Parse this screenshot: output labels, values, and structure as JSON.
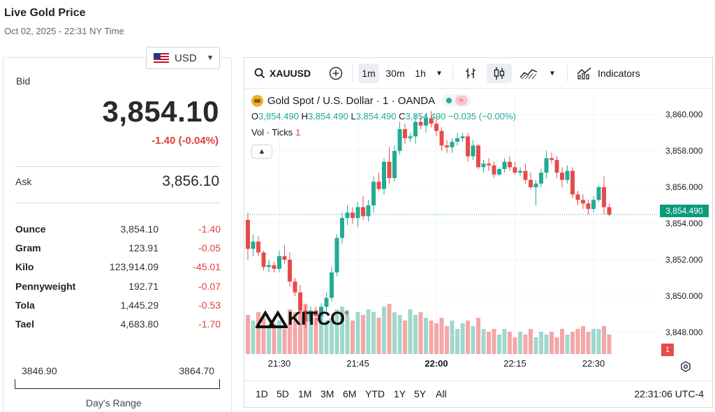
{
  "header": {
    "title": "Live Gold Price",
    "subtitle": "Oct 02, 2025 - 22:31 NY Time"
  },
  "currency": {
    "selected": "USD",
    "flag_icon": "us-flag-icon"
  },
  "bid": {
    "label": "Bid",
    "value": "3,854.10",
    "change": "-1.40 (-0.04%)"
  },
  "ask": {
    "label": "Ask",
    "value": "3,856.10"
  },
  "units": [
    {
      "name": "Ounce",
      "price": "3,854.10",
      "change": "-1.40"
    },
    {
      "name": "Gram",
      "price": "123.91",
      "change": "-0.05"
    },
    {
      "name": "Kilo",
      "price": "123,914.09",
      "change": "-45.01"
    },
    {
      "name": "Pennyweight",
      "price": "192.71",
      "change": "-0.07"
    },
    {
      "name": "Tola",
      "price": "1,445.29",
      "change": "-0.53"
    },
    {
      "name": "Tael",
      "price": "4,683.80",
      "change": "-1.70"
    }
  ],
  "days_range": {
    "low": "3846.90",
    "high": "3864.70",
    "caption": "Day's Range"
  },
  "toolbar": {
    "symbol": "XAUUSD",
    "intervals": [
      "1m",
      "30m",
      "1h"
    ],
    "active_interval": "1m",
    "indicators_label": "Indicators"
  },
  "legend": {
    "title": "Gold Spot / U.S. Dollar · 1 · OANDA",
    "o_label": "O",
    "o_value": "3,854.490",
    "h_label": "H",
    "h_value": "3,854.490",
    "l_label": "L",
    "l_value": "3,854.490",
    "c_label": "C",
    "c_value": "3,854.490",
    "change": "−0.035 (−0.00%)",
    "vol_label": "Vol · Ticks",
    "vol_value": "1",
    "live_symbol": "≈"
  },
  "watermark": {
    "text": "KITCO",
    "reg": "®"
  },
  "last_price_tag": "3,854.490",
  "volume_badge": "1",
  "range_buttons": [
    "1D",
    "5D",
    "1M",
    "3M",
    "6M",
    "YTD",
    "1Y",
    "5Y",
    "All"
  ],
  "clock": "22:31:06 UTC-4",
  "colors": {
    "up": "#22ab94",
    "down": "#e74b4b",
    "up_vol": "#9fd8cc",
    "down_vol": "#f4a7a7",
    "accent": "#0c9b7a"
  },
  "chart_data": {
    "type": "candlestick",
    "title": "Gold Spot / U.S. Dollar · 1 · OANDA",
    "yticks": [
      3860,
      3858,
      3856,
      3854,
      3852,
      3850,
      3848
    ],
    "ytick_labels": [
      "3,860.000",
      "3,858.000",
      "3,856.000",
      "3,854.000",
      "3,852.000",
      "3,850.000",
      "3,848.000"
    ],
    "ylim": [
      3846.8,
      3861.2
    ],
    "xtick_labels": [
      "21:30",
      "21:45",
      "22:00",
      "22:15",
      "22:30"
    ],
    "xtick_bar_index": [
      6,
      21,
      36,
      51,
      66
    ],
    "last_price": 3854.49,
    "candles": [
      [
        3854.2,
        3854.6,
        3852.0,
        3852.6
      ],
      [
        3852.6,
        3853.4,
        3852.2,
        3853.0
      ],
      [
        3853.0,
        3853.3,
        3852.2,
        3852.4
      ],
      [
        3852.4,
        3852.5,
        3851.4,
        3851.6
      ],
      [
        3851.6,
        3852.0,
        3851.3,
        3851.7
      ],
      [
        3851.7,
        3851.9,
        3851.3,
        3851.5
      ],
      [
        3851.5,
        3852.5,
        3851.3,
        3852.2
      ],
      [
        3852.2,
        3852.8,
        3851.8,
        3852.0
      ],
      [
        3852.0,
        3852.4,
        3850.5,
        3850.8
      ],
      [
        3850.8,
        3851.0,
        3850.0,
        3850.2
      ],
      [
        3850.2,
        3850.6,
        3849.0,
        3849.2
      ],
      [
        3849.2,
        3849.5,
        3848.2,
        3848.6
      ],
      [
        3848.6,
        3849.4,
        3848.4,
        3849.2
      ],
      [
        3849.2,
        3849.4,
        3848.4,
        3848.9
      ],
      [
        3848.9,
        3849.6,
        3848.6,
        3849.4
      ],
      [
        3849.4,
        3850.2,
        3849.0,
        3849.9
      ],
      [
        3849.9,
        3851.6,
        3849.7,
        3851.3
      ],
      [
        3851.3,
        3853.4,
        3851.1,
        3853.2
      ],
      [
        3853.2,
        3854.6,
        3852.9,
        3854.3
      ],
      [
        3854.3,
        3855.0,
        3853.9,
        3854.6
      ],
      [
        3854.6,
        3854.9,
        3854.0,
        3854.3
      ],
      [
        3854.3,
        3855.2,
        3853.8,
        3854.9
      ],
      [
        3854.9,
        3855.5,
        3854.2,
        3854.4
      ],
      [
        3854.4,
        3855.3,
        3854.1,
        3855.0
      ],
      [
        3855.0,
        3856.6,
        3854.6,
        3856.3
      ],
      [
        3856.3,
        3856.8,
        3855.8,
        3855.9
      ],
      [
        3855.9,
        3857.6,
        3855.6,
        3857.4
      ],
      [
        3857.4,
        3858.2,
        3856.2,
        3856.5
      ],
      [
        3856.5,
        3858.3,
        3856.3,
        3858.0
      ],
      [
        3858.0,
        3859.6,
        3857.8,
        3859.2
      ],
      [
        3859.2,
        3859.5,
        3858.4,
        3858.7
      ],
      [
        3858.7,
        3859.0,
        3858.5,
        3858.8
      ],
      [
        3858.8,
        3860.0,
        3858.4,
        3859.6
      ],
      [
        3859.6,
        3859.9,
        3859.2,
        3859.4
      ],
      [
        3859.4,
        3860.0,
        3859.0,
        3859.8
      ],
      [
        3859.8,
        3860.2,
        3859.3,
        3859.5
      ],
      [
        3859.5,
        3859.9,
        3858.8,
        3859.1
      ],
      [
        3859.1,
        3859.3,
        3858.0,
        3858.3
      ],
      [
        3858.3,
        3858.6,
        3857.9,
        3858.2
      ],
      [
        3858.2,
        3858.7,
        3857.9,
        3858.5
      ],
      [
        3858.5,
        3859.0,
        3858.3,
        3858.7
      ],
      [
        3858.7,
        3859.0,
        3858.5,
        3858.8
      ],
      [
        3858.8,
        3859.0,
        3857.4,
        3857.7
      ],
      [
        3857.7,
        3858.6,
        3857.5,
        3858.3
      ],
      [
        3858.3,
        3858.4,
        3857.0,
        3857.1
      ],
      [
        3857.1,
        3857.5,
        3856.8,
        3857.3
      ],
      [
        3857.3,
        3857.6,
        3856.9,
        3857.2
      ],
      [
        3857.2,
        3857.4,
        3856.5,
        3856.7
      ],
      [
        3856.7,
        3857.1,
        3856.6,
        3857.0
      ],
      [
        3857.0,
        3857.6,
        3856.8,
        3857.4
      ],
      [
        3857.4,
        3857.7,
        3856.9,
        3857.1
      ],
      [
        3857.1,
        3857.4,
        3856.7,
        3856.8
      ],
      [
        3856.8,
        3857.1,
        3856.6,
        3856.9
      ],
      [
        3856.9,
        3857.3,
        3856.2,
        3856.4
      ],
      [
        3856.4,
        3856.8,
        3855.9,
        3856.0
      ],
      [
        3856.0,
        3856.4,
        3855.0,
        3856.2
      ],
      [
        3856.2,
        3857.0,
        3856.0,
        3856.8
      ],
      [
        3856.8,
        3858.0,
        3856.5,
        3857.6
      ],
      [
        3857.6,
        3857.9,
        3857.3,
        3857.5
      ],
      [
        3857.5,
        3857.7,
        3856.5,
        3856.8
      ],
      [
        3856.8,
        3857.1,
        3856.0,
        3856.4
      ],
      [
        3856.4,
        3857.2,
        3856.2,
        3856.9
      ],
      [
        3856.9,
        3857.1,
        3855.4,
        3855.6
      ],
      [
        3855.6,
        3855.8,
        3855.0,
        3855.3
      ],
      [
        3855.3,
        3855.6,
        3854.8,
        3855.1
      ],
      [
        3855.1,
        3855.3,
        3854.5,
        3854.8
      ],
      [
        3854.8,
        3855.5,
        3854.6,
        3855.3
      ],
      [
        3855.3,
        3856.1,
        3855.2,
        3856.0
      ],
      [
        3856.0,
        3856.6,
        3854.5,
        3854.9
      ],
      [
        3854.9,
        3855.1,
        3854.4,
        3854.49
      ]
    ],
    "volumes": [
      14,
      12,
      15,
      13,
      10,
      11,
      12,
      9,
      16,
      15,
      17,
      18,
      12,
      13,
      14,
      12,
      13,
      16,
      17,
      14,
      12,
      15,
      14,
      16,
      15,
      13,
      17,
      18,
      15,
      14,
      12,
      16,
      14,
      15,
      13,
      12,
      11,
      13,
      10,
      12,
      9,
      11,
      12,
      10,
      13,
      9,
      8,
      9,
      7,
      9,
      8,
      6,
      8,
      7,
      9,
      6,
      8,
      7,
      8,
      6,
      9,
      7,
      8,
      9,
      10,
      8,
      9,
      9,
      10,
      7
    ],
    "volume_max": 20
  }
}
